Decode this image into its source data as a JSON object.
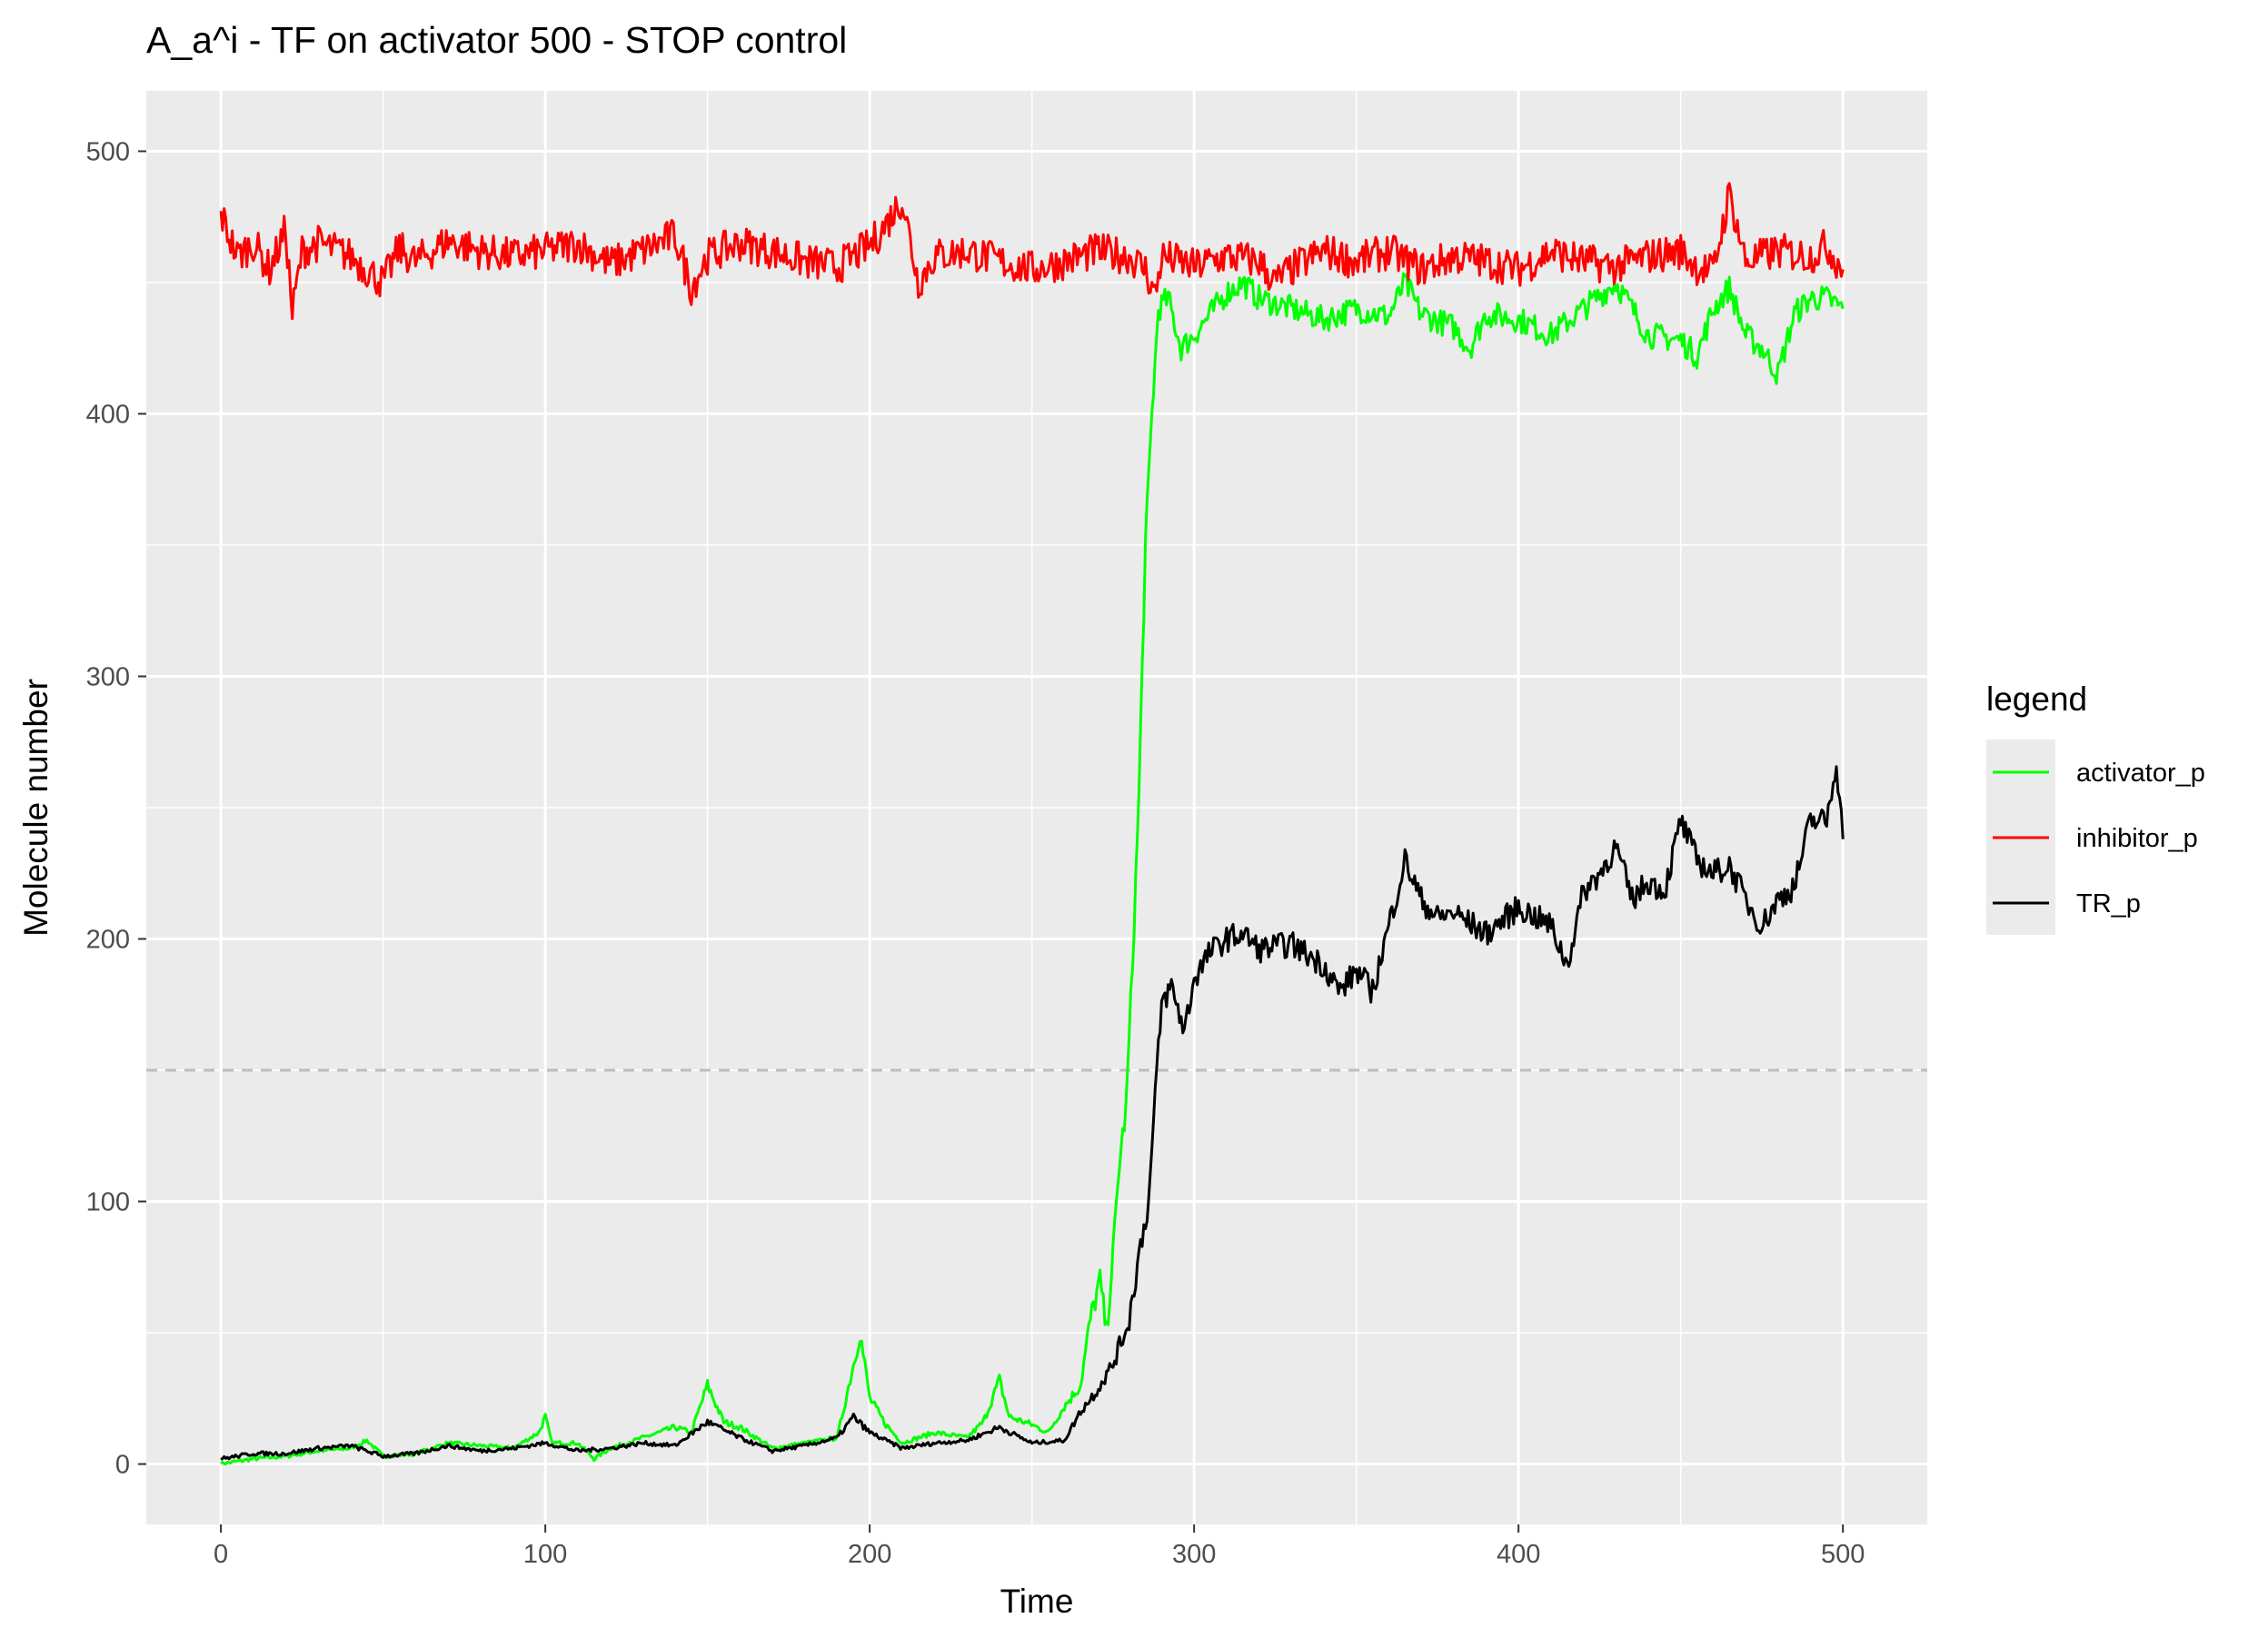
{
  "chart_data": {
    "type": "line",
    "title": "A_a^i - TF on activator 500 - STOP control",
    "xlabel": "Time",
    "ylabel": "Molecule number",
    "xlim": [
      -23,
      526
    ],
    "ylim": [
      -23,
      523
    ],
    "x_ticks": [
      0,
      100,
      200,
      300,
      400,
      500
    ],
    "y_ticks": [
      0,
      100,
      200,
      300,
      400,
      500
    ],
    "x_minor": [
      50,
      150,
      250,
      350,
      450
    ],
    "y_minor": [
      50,
      150,
      250,
      350,
      450
    ],
    "grid": true,
    "panel_background": "#ebebeb",
    "hline": {
      "y": 150,
      "color": "#bebebe",
      "style": "dashed"
    },
    "legend": {
      "title": "legend",
      "position": "right",
      "entries": [
        {
          "label": "activator_p",
          "color": "#00ff00"
        },
        {
          "label": "inhibitor_p",
          "color": "#ff0000"
        },
        {
          "label": "TR_p",
          "color": "#000000"
        }
      ]
    },
    "series": [
      {
        "name": "activator_p",
        "color": "#00ff00",
        "points": [
          [
            0,
            0
          ],
          [
            10,
            2
          ],
          [
            20,
            3
          ],
          [
            30,
            5
          ],
          [
            40,
            6
          ],
          [
            45,
            9
          ],
          [
            50,
            3
          ],
          [
            60,
            4
          ],
          [
            70,
            8
          ],
          [
            80,
            7
          ],
          [
            90,
            6
          ],
          [
            98,
            12
          ],
          [
            100,
            18
          ],
          [
            102,
            8
          ],
          [
            110,
            8
          ],
          [
            115,
            2
          ],
          [
            120,
            6
          ],
          [
            130,
            10
          ],
          [
            140,
            14
          ],
          [
            145,
            12
          ],
          [
            150,
            30
          ],
          [
            155,
            16
          ],
          [
            160,
            14
          ],
          [
            170,
            6
          ],
          [
            180,
            8
          ],
          [
            190,
            10
          ],
          [
            195,
            38
          ],
          [
            197,
            50
          ],
          [
            200,
            25
          ],
          [
            205,
            15
          ],
          [
            210,
            8
          ],
          [
            220,
            12
          ],
          [
            230,
            10
          ],
          [
            235,
            16
          ],
          [
            240,
            32
          ],
          [
            243,
            18
          ],
          [
            250,
            15
          ],
          [
            255,
            12
          ],
          [
            260,
            22
          ],
          [
            265,
            30
          ],
          [
            268,
            55
          ],
          [
            271,
            70
          ],
          [
            273,
            50
          ],
          [
            275,
            80
          ],
          [
            277,
            115
          ],
          [
            279,
            135
          ],
          [
            281,
            190
          ],
          [
            283,
            255
          ],
          [
            285,
            350
          ],
          [
            287,
            400
          ],
          [
            289,
            440
          ],
          [
            292,
            444
          ],
          [
            296,
            425
          ],
          [
            300,
            430
          ],
          [
            305,
            438
          ],
          [
            310,
            446
          ],
          [
            315,
            450
          ],
          [
            320,
            444
          ],
          [
            330,
            440
          ],
          [
            340,
            436
          ],
          [
            350,
            440
          ],
          [
            360,
            437
          ],
          [
            365,
            450
          ],
          [
            370,
            438
          ],
          [
            380,
            433
          ],
          [
            385,
            425
          ],
          [
            390,
            438
          ],
          [
            400,
            436
          ],
          [
            410,
            430
          ],
          [
            420,
            440
          ],
          [
            430,
            450
          ],
          [
            435,
            440
          ],
          [
            440,
            430
          ],
          [
            450,
            428
          ],
          [
            455,
            422
          ],
          [
            460,
            440
          ],
          [
            465,
            448
          ],
          [
            470,
            430
          ],
          [
            475,
            425
          ],
          [
            480,
            415
          ],
          [
            485,
            438
          ],
          [
            490,
            444
          ],
          [
            495,
            444
          ],
          [
            500,
            440
          ]
        ]
      },
      {
        "name": "inhibitor_p",
        "color": "#ff0000",
        "points": [
          [
            0,
            476
          ],
          [
            5,
            460
          ],
          [
            10,
            465
          ],
          [
            15,
            455
          ],
          [
            20,
            470
          ],
          [
            22,
            438
          ],
          [
            25,
            462
          ],
          [
            30,
            465
          ],
          [
            40,
            460
          ],
          [
            50,
            450
          ],
          [
            55,
            463
          ],
          [
            60,
            458
          ],
          [
            70,
            466
          ],
          [
            80,
            462
          ],
          [
            90,
            460
          ],
          [
            100,
            462
          ],
          [
            110,
            465
          ],
          [
            120,
            457
          ],
          [
            130,
            462
          ],
          [
            140,
            468
          ],
          [
            145,
            448
          ],
          [
            150,
            460
          ],
          [
            160,
            465
          ],
          [
            170,
            462
          ],
          [
            180,
            458
          ],
          [
            190,
            456
          ],
          [
            200,
            464
          ],
          [
            205,
            472
          ],
          [
            210,
            482
          ],
          [
            215,
            450
          ],
          [
            220,
            460
          ],
          [
            230,
            462
          ],
          [
            240,
            458
          ],
          [
            250,
            455
          ],
          [
            260,
            458
          ],
          [
            270,
            462
          ],
          [
            280,
            460
          ],
          [
            285,
            455
          ],
          [
            288,
            445
          ],
          [
            290,
            460
          ],
          [
            300,
            456
          ],
          [
            310,
            460
          ],
          [
            320,
            458
          ],
          [
            325,
            450
          ],
          [
            330,
            455
          ],
          [
            340,
            462
          ],
          [
            350,
            458
          ],
          [
            360,
            462
          ],
          [
            370,
            455
          ],
          [
            380,
            460
          ],
          [
            390,
            458
          ],
          [
            400,
            455
          ],
          [
            410,
            462
          ],
          [
            420,
            458
          ],
          [
            430,
            456
          ],
          [
            440,
            460
          ],
          [
            450,
            462
          ],
          [
            455,
            456
          ],
          [
            460,
            454
          ],
          [
            465,
            484
          ],
          [
            470,
            458
          ],
          [
            480,
            462
          ],
          [
            490,
            460
          ],
          [
            495,
            464
          ],
          [
            500,
            455
          ]
        ]
      },
      {
        "name": "TR_p",
        "color": "#000000",
        "points": [
          [
            0,
            2
          ],
          [
            10,
            4
          ],
          [
            20,
            4
          ],
          [
            30,
            6
          ],
          [
            40,
            7
          ],
          [
            50,
            3
          ],
          [
            60,
            4
          ],
          [
            70,
            7
          ],
          [
            80,
            5
          ],
          [
            90,
            6
          ],
          [
            100,
            8
          ],
          [
            110,
            5
          ],
          [
            120,
            6
          ],
          [
            130,
            8
          ],
          [
            140,
            7
          ],
          [
            150,
            16
          ],
          [
            160,
            10
          ],
          [
            170,
            5
          ],
          [
            180,
            7
          ],
          [
            190,
            10
          ],
          [
            195,
            18
          ],
          [
            200,
            12
          ],
          [
            210,
            6
          ],
          [
            220,
            8
          ],
          [
            230,
            9
          ],
          [
            240,
            14
          ],
          [
            250,
            8
          ],
          [
            260,
            9
          ],
          [
            265,
            20
          ],
          [
            270,
            28
          ],
          [
            275,
            38
          ],
          [
            280,
            55
          ],
          [
            283,
            80
          ],
          [
            286,
            100
          ],
          [
            288,
            140
          ],
          [
            290,
            175
          ],
          [
            293,
            182
          ],
          [
            297,
            165
          ],
          [
            300,
            185
          ],
          [
            305,
            195
          ],
          [
            310,
            200
          ],
          [
            315,
            202
          ],
          [
            320,
            196
          ],
          [
            330,
            198
          ],
          [
            340,
            190
          ],
          [
            345,
            180
          ],
          [
            350,
            188
          ],
          [
            355,
            180
          ],
          [
            360,
            205
          ],
          [
            365,
            230
          ],
          [
            370,
            215
          ],
          [
            375,
            208
          ],
          [
            380,
            210
          ],
          [
            390,
            202
          ],
          [
            400,
            212
          ],
          [
            410,
            205
          ],
          [
            415,
            190
          ],
          [
            420,
            218
          ],
          [
            425,
            225
          ],
          [
            430,
            235
          ],
          [
            435,
            215
          ],
          [
            440,
            222
          ],
          [
            445,
            218
          ],
          [
            450,
            245
          ],
          [
            455,
            230
          ],
          [
            460,
            225
          ],
          [
            465,
            228
          ],
          [
            470,
            215
          ],
          [
            475,
            205
          ],
          [
            480,
            215
          ],
          [
            485,
            220
          ],
          [
            490,
            245
          ],
          [
            495,
            245
          ],
          [
            498,
            268
          ],
          [
            500,
            238
          ]
        ]
      }
    ]
  }
}
